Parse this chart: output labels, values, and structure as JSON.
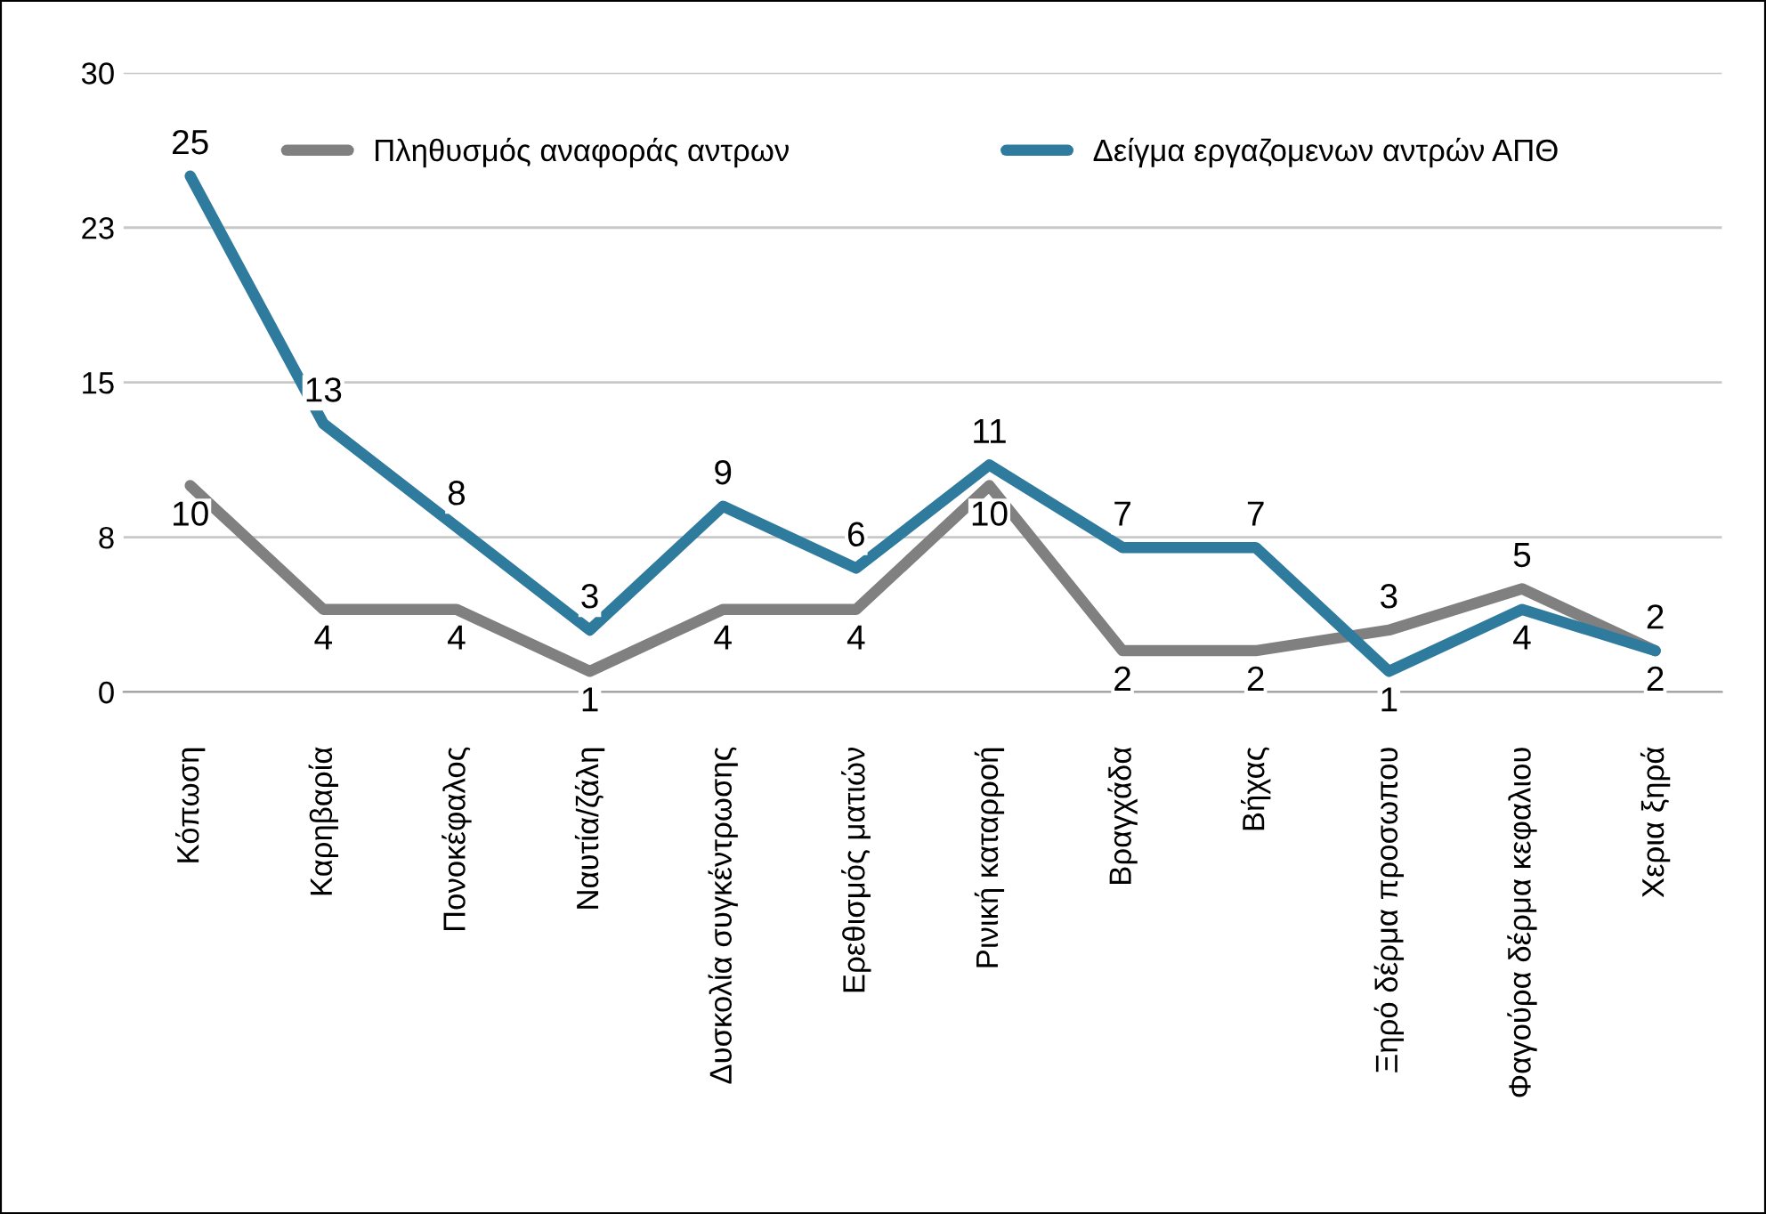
{
  "chart_data": {
    "type": "line",
    "categories": [
      "Κόπωση",
      "Καρηβαρία",
      "Πονοκέφαλος",
      "Ναυτία/ζάλη",
      "Δυσκολία συγκέντρωσης",
      "Ερεθισμός ματιών",
      "Ρινική καταρροή",
      "Βραγχάδα",
      "Βήχας",
      "Ξηρό δέρμα προσωπου",
      "Φαγούρα δέρμα κεφαλιου",
      "Χερια ξηρά"
    ],
    "series": [
      {
        "name": "Πληθυσμός αναφοράς αντρων",
        "color": "#808080",
        "values": [
          10,
          4,
          4,
          1,
          4,
          4,
          10,
          2,
          2,
          3,
          5,
          2
        ]
      },
      {
        "name": "Δείγμα εργαζομενων αντρών ΑΠΘ",
        "color": "#2f7b9e",
        "values": [
          25,
          13,
          8,
          3,
          9,
          6,
          11,
          7,
          7,
          1,
          4,
          2
        ]
      }
    ],
    "ylim": [
      0,
      30
    ],
    "yticks": [
      0,
      {
        "value": 7.5,
        "label": "8"
      },
      15,
      {
        "value": 22.5,
        "label": "23"
      },
      30
    ],
    "grid": "y",
    "legend": "top",
    "marker": "none",
    "line_style": "solid",
    "data_labels": true
  }
}
